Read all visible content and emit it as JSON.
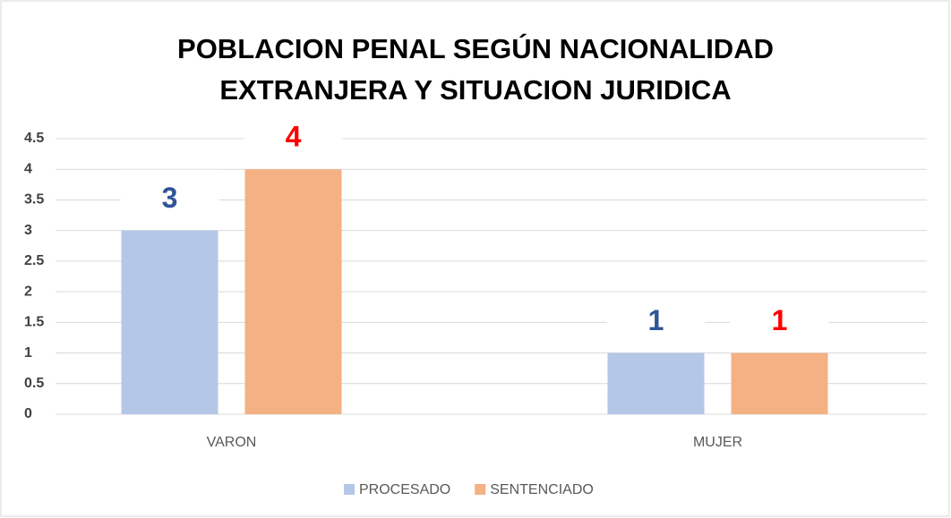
{
  "chart_data": {
    "type": "bar",
    "title": [
      "POBLACION PENAL SEGÚN NACIONALIDAD",
      "EXTRANJERA Y SITUACION JURIDICA"
    ],
    "categories": [
      "VARON",
      "MUJER"
    ],
    "series": [
      {
        "name": "PROCESADO",
        "color": "#b4c7e7",
        "label_color": "#2f5597",
        "values": [
          3,
          1
        ]
      },
      {
        "name": "SENTENCIADO",
        "color": "#f4b183",
        "label_color": "#ff0000",
        "values": [
          4,
          1
        ]
      }
    ],
    "ylim": [
      0,
      4.5
    ],
    "yticks": [
      0,
      0.5,
      1,
      1.5,
      2,
      2.5,
      3,
      3.5,
      4,
      4.5
    ],
    "grid": true,
    "legend": "bottom"
  }
}
